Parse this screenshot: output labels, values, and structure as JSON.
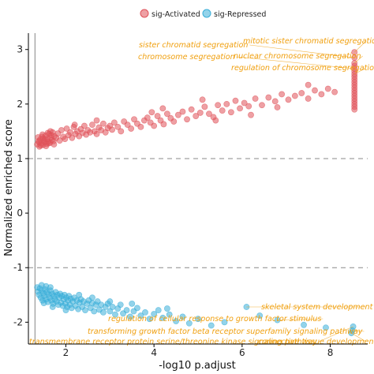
{
  "chart_data": {
    "type": "scatter",
    "xlabel": "-log10 p.adjust",
    "ylabel": "Normalized enriched score",
    "xlim": [
      1.15,
      8.85
    ],
    "ylim": [
      -2.4,
      3.3
    ],
    "xticks": [
      2,
      4,
      6,
      8
    ],
    "xtick_labels": [
      "2",
      "4",
      "6",
      "8"
    ],
    "yticks": [
      -2,
      -1,
      0,
      1,
      2,
      3
    ],
    "ytick_labels": [
      "-2",
      "-1",
      "0",
      "1",
      "2",
      "3"
    ],
    "reference_lines": {
      "horizontal": [
        1,
        -1
      ],
      "vertical": [
        1.3
      ]
    },
    "grid": false,
    "legend_position": "top",
    "series": [
      {
        "name": "sig-Activated",
        "color": "#e0525a",
        "points": [
          [
            1.35,
            1.26
          ],
          [
            1.38,
            1.32
          ],
          [
            1.4,
            1.22
          ],
          [
            1.42,
            1.35
          ],
          [
            1.44,
            1.28
          ],
          [
            1.46,
            1.4
          ],
          [
            1.48,
            1.25
          ],
          [
            1.5,
            1.33
          ],
          [
            1.52,
            1.3
          ],
          [
            1.54,
            1.42
          ],
          [
            1.56,
            1.27
          ],
          [
            1.58,
            1.36
          ],
          [
            1.6,
            1.31
          ],
          [
            1.62,
            1.45
          ],
          [
            1.64,
            1.29
          ],
          [
            1.66,
            1.38
          ],
          [
            1.68,
            1.34
          ],
          [
            1.7,
            1.48
          ],
          [
            1.72,
            1.32
          ],
          [
            1.74,
            1.41
          ],
          [
            1.37,
            1.39
          ],
          [
            1.43,
            1.24
          ],
          [
            1.49,
            1.37
          ],
          [
            1.55,
            1.23
          ],
          [
            1.61,
            1.28
          ],
          [
            1.67,
            1.43
          ],
          [
            1.73,
            1.26
          ],
          [
            1.39,
            1.3
          ],
          [
            1.47,
            1.44
          ],
          [
            1.53,
            1.36
          ],
          [
            1.59,
            1.47
          ],
          [
            1.65,
            1.5
          ],
          [
            1.78,
            1.38
          ],
          [
            1.82,
            1.46
          ],
          [
            1.86,
            1.33
          ],
          [
            1.9,
            1.52
          ],
          [
            1.94,
            1.4
          ],
          [
            1.98,
            1.36
          ],
          [
            2.02,
            1.55
          ],
          [
            2.06,
            1.43
          ],
          [
            2.1,
            1.48
          ],
          [
            2.14,
            1.38
          ],
          [
            2.18,
            1.58
          ],
          [
            2.22,
            1.45
          ],
          [
            2.26,
            1.5
          ],
          [
            2.3,
            1.41
          ],
          [
            2.34,
            1.54
          ],
          [
            2.38,
            1.47
          ],
          [
            2.42,
            1.6
          ],
          [
            2.46,
            1.44
          ],
          [
            2.5,
            1.52
          ],
          [
            2.55,
            1.48
          ],
          [
            2.6,
            1.62
          ],
          [
            2.65,
            1.5
          ],
          [
            2.7,
            1.45
          ],
          [
            2.75,
            1.57
          ],
          [
            2.8,
            1.52
          ],
          [
            2.85,
            1.64
          ],
          [
            2.9,
            1.48
          ],
          [
            2.95,
            1.56
          ],
          [
            3.0,
            1.6
          ],
          [
            3.05,
            1.53
          ],
          [
            3.1,
            1.66
          ],
          [
            3.18,
            1.58
          ],
          [
            3.25,
            1.5
          ],
          [
            3.32,
            1.68
          ],
          [
            3.4,
            1.62
          ],
          [
            3.48,
            1.55
          ],
          [
            3.55,
            1.72
          ],
          [
            3.62,
            1.64
          ],
          [
            3.7,
            1.58
          ],
          [
            3.78,
            1.7
          ],
          [
            3.85,
            1.75
          ],
          [
            3.92,
            1.66
          ],
          [
            4.0,
            1.6
          ],
          [
            4.08,
            1.78
          ],
          [
            4.15,
            1.7
          ],
          [
            4.22,
            1.63
          ],
          [
            4.3,
            1.82
          ],
          [
            4.38,
            1.74
          ],
          [
            4.45,
            1.68
          ],
          [
            4.55,
            1.8
          ],
          [
            4.65,
            1.86
          ],
          [
            4.75,
            1.72
          ],
          [
            4.85,
            1.9
          ],
          [
            4.95,
            1.78
          ],
          [
            5.05,
            1.84
          ],
          [
            5.15,
            1.95
          ],
          [
            5.25,
            1.82
          ],
          [
            5.35,
            1.76
          ],
          [
            5.45,
            1.98
          ],
          [
            5.55,
            1.88
          ],
          [
            5.65,
            2.0
          ],
          [
            5.75,
            1.85
          ],
          [
            5.85,
            2.06
          ],
          [
            5.95,
            1.92
          ],
          [
            6.05,
            2.02
          ],
          [
            6.15,
            1.96
          ],
          [
            6.3,
            2.1
          ],
          [
            6.45,
            1.98
          ],
          [
            6.6,
            2.12
          ],
          [
            6.75,
            2.05
          ],
          [
            6.9,
            2.18
          ],
          [
            7.05,
            2.08
          ],
          [
            7.2,
            2.15
          ],
          [
            7.35,
            2.2
          ],
          [
            7.5,
            2.1
          ],
          [
            7.65,
            2.25
          ],
          [
            7.8,
            2.18
          ],
          [
            7.95,
            2.28
          ],
          [
            8.1,
            2.22
          ],
          [
            5.1,
            2.08
          ],
          [
            5.4,
            1.7
          ],
          [
            4.2,
            1.92
          ],
          [
            3.95,
            1.85
          ],
          [
            6.8,
            1.94
          ],
          [
            2.7,
            1.7
          ],
          [
            2.2,
            1.62
          ],
          [
            7.5,
            2.35
          ],
          [
            6.2,
            1.8
          ],
          [
            8.55,
            2.95
          ],
          [
            8.55,
            2.85
          ],
          [
            8.55,
            2.75
          ],
          [
            8.55,
            2.65
          ],
          [
            8.55,
            2.55
          ],
          [
            8.55,
            2.45
          ],
          [
            8.55,
            2.35
          ],
          [
            8.55,
            2.25
          ],
          [
            8.55,
            2.15
          ],
          [
            8.55,
            2.05
          ],
          [
            8.55,
            1.95
          ],
          [
            8.55,
            1.9
          ],
          [
            8.55,
            2.7
          ],
          [
            8.55,
            2.5
          ],
          [
            8.55,
            2.3
          ],
          [
            8.55,
            2.1
          ],
          [
            8.55,
            2.0
          ],
          [
            8.55,
            2.6
          ],
          [
            8.55,
            2.4
          ],
          [
            8.55,
            2.2
          ]
        ]
      },
      {
        "name": "sig-Repressed",
        "color": "#3aaed8",
        "points": [
          [
            1.35,
            -1.36
          ],
          [
            1.37,
            -1.44
          ],
          [
            1.39,
            -1.5
          ],
          [
            1.41,
            -1.38
          ],
          [
            1.43,
            -1.55
          ],
          [
            1.45,
            -1.42
          ],
          [
            1.47,
            -1.6
          ],
          [
            1.49,
            -1.47
          ],
          [
            1.51,
            -1.52
          ],
          [
            1.53,
            -1.4
          ],
          [
            1.55,
            -1.58
          ],
          [
            1.57,
            -1.45
          ],
          [
            1.59,
            -1.63
          ],
          [
            1.61,
            -1.49
          ],
          [
            1.63,
            -1.55
          ],
          [
            1.65,
            -1.42
          ],
          [
            1.67,
            -1.6
          ],
          [
            1.69,
            -1.48
          ],
          [
            1.71,
            -1.66
          ],
          [
            1.73,
            -1.52
          ],
          [
            1.75,
            -1.58
          ],
          [
            1.77,
            -1.45
          ],
          [
            1.79,
            -1.62
          ],
          [
            1.81,
            -1.5
          ],
          [
            1.83,
            -1.68
          ],
          [
            1.85,
            -1.55
          ],
          [
            1.87,
            -1.48
          ],
          [
            1.89,
            -1.64
          ],
          [
            1.91,
            -1.52
          ],
          [
            1.93,
            -1.7
          ],
          [
            1.95,
            -1.58
          ],
          [
            1.97,
            -1.5
          ],
          [
            1.99,
            -1.66
          ],
          [
            2.01,
            -1.55
          ],
          [
            2.03,
            -1.72
          ],
          [
            2.05,
            -1.6
          ],
          [
            2.07,
            -1.52
          ],
          [
            2.09,
            -1.68
          ],
          [
            2.11,
            -1.57
          ],
          [
            2.13,
            -1.74
          ],
          [
            2.16,
            -1.62
          ],
          [
            2.19,
            -1.55
          ],
          [
            2.22,
            -1.7
          ],
          [
            2.25,
            -1.6
          ],
          [
            2.28,
            -1.76
          ],
          [
            2.31,
            -1.64
          ],
          [
            2.34,
            -1.58
          ],
          [
            2.37,
            -1.72
          ],
          [
            2.4,
            -1.62
          ],
          [
            2.44,
            -1.78
          ],
          [
            2.48,
            -1.66
          ],
          [
            2.52,
            -1.6
          ],
          [
            2.56,
            -1.74
          ],
          [
            2.6,
            -1.65
          ],
          [
            2.64,
            -1.8
          ],
          [
            2.68,
            -1.68
          ],
          [
            2.72,
            -1.62
          ],
          [
            2.76,
            -1.77
          ],
          [
            2.8,
            -1.68
          ],
          [
            2.85,
            -1.82
          ],
          [
            2.9,
            -1.72
          ],
          [
            2.95,
            -1.66
          ],
          [
            3.0,
            -1.8
          ],
          [
            3.06,
            -1.72
          ],
          [
            3.12,
            -1.86
          ],
          [
            3.18,
            -1.75
          ],
          [
            3.24,
            -1.68
          ],
          [
            3.3,
            -1.84
          ],
          [
            3.38,
            -1.78
          ],
          [
            3.46,
            -1.9
          ],
          [
            3.54,
            -1.8
          ],
          [
            3.62,
            -1.74
          ],
          [
            3.7,
            -1.88
          ],
          [
            3.8,
            -1.82
          ],
          [
            3.9,
            -1.94
          ],
          [
            4.0,
            -1.85
          ],
          [
            4.1,
            -1.78
          ],
          [
            4.2,
            -1.92
          ],
          [
            4.35,
            -1.86
          ],
          [
            4.5,
            -1.98
          ],
          [
            4.65,
            -1.9
          ],
          [
            4.8,
            -2.02
          ],
          [
            5.0,
            -1.94
          ],
          [
            5.3,
            -2.06
          ],
          [
            5.6,
            -2.0
          ],
          [
            6.1,
            -1.72
          ],
          [
            6.4,
            -1.88
          ],
          [
            6.8,
            -1.96
          ],
          [
            7.4,
            -2.05
          ],
          [
            7.9,
            -2.1
          ],
          [
            8.5,
            -2.15
          ],
          [
            8.52,
            -2.08
          ],
          [
            8.48,
            -2.2
          ],
          [
            1.45,
            -1.32
          ],
          [
            1.55,
            -1.34
          ],
          [
            1.65,
            -1.36
          ],
          [
            2.3,
            -1.5
          ],
          [
            2.6,
            -1.55
          ],
          [
            3.0,
            -1.62
          ],
          [
            3.5,
            -1.66
          ],
          [
            4.3,
            -1.75
          ],
          [
            1.5,
            -1.65
          ],
          [
            1.7,
            -1.72
          ],
          [
            2.0,
            -1.78
          ]
        ]
      }
    ],
    "annotations": [
      {
        "text": "mitotic sister chromatid segregation",
        "target": [
          8.55,
          2.95
        ]
      },
      {
        "text": "sister chromatid segregation",
        "target": [
          8.55,
          2.85
        ]
      },
      {
        "text": "nuclear chromosome segregation",
        "target": [
          8.55,
          2.75
        ]
      },
      {
        "text": "chromosome segregation",
        "target": [
          8.55,
          2.65
        ]
      },
      {
        "text": "regulation of chromosome segregation",
        "target": [
          8.55,
          2.55
        ]
      },
      {
        "text": "skeletal system development",
        "target": [
          6.1,
          -1.72
        ]
      },
      {
        "text": "regulation of cellular response to growth factor stimulus",
        "target": [
          6.8,
          -1.96
        ]
      },
      {
        "text": "transforming growth factor beta receptor superfamily signaling pathway",
        "target": [
          8.5,
          -2.15
        ]
      },
      {
        "text": "transmembrane receptor protein serine/threonine kinase signaling pathway",
        "target": [
          8.52,
          -2.08
        ]
      },
      {
        "text": "connective tissue development",
        "target": [
          8.48,
          -2.2
        ]
      }
    ]
  }
}
